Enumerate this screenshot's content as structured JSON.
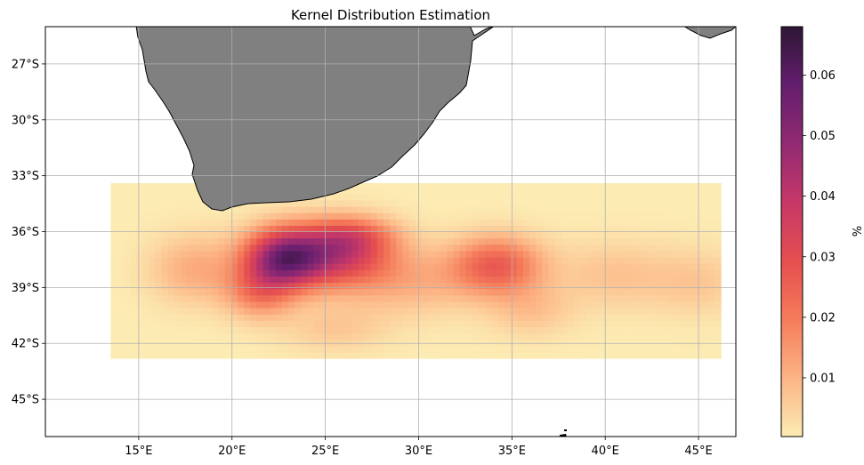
{
  "title": "Kernel Distribution Estimation",
  "colorbar": {
    "label": "%",
    "ticks": [
      0.01,
      0.02,
      0.03,
      0.04,
      0.05,
      0.06
    ],
    "tick_labels": [
      "0.01",
      "0.02",
      "0.03",
      "0.04",
      "0.05",
      "0.06"
    ],
    "range": [
      0.0003,
      0.068
    ],
    "colormap": "magma_r",
    "colors": [
      "#fcecb3",
      "#fcb485",
      "#f57c5a",
      "#e54f4f",
      "#c63868",
      "#922a72",
      "#641e6e",
      "#2e1534"
    ]
  },
  "map": {
    "land_color": "#808080",
    "coast_color": "#000000",
    "grid": true,
    "lon_range": [
      10,
      47
    ],
    "lat_range": [
      -47,
      -25
    ],
    "x_ticks": [
      15,
      20,
      25,
      30,
      35,
      40,
      45
    ],
    "x_tick_labels": [
      "15°E",
      "20°E",
      "25°E",
      "30°E",
      "35°E",
      "40°E",
      "45°E"
    ],
    "y_ticks": [
      -27,
      -30,
      -33,
      -36,
      -39,
      -42,
      -45
    ],
    "y_tick_labels": [
      "27°S",
      "30°S",
      "33°S",
      "36°S",
      "39°S",
      "42°S",
      "45°S"
    ]
  },
  "chart_data": {
    "type": "heatmap",
    "title": "Kernel Distribution Estimation",
    "value_label": "%",
    "domain": {
      "lon": [
        13.5,
        46.2
      ],
      "lat": [
        -42.8,
        -33.4
      ]
    },
    "vmin": 0.0003,
    "vmax": 0.068,
    "kernels": [
      {
        "lon": 22.8,
        "lat": -37.4,
        "amp": 0.05,
        "sx": 1.5,
        "sy": 1.1
      },
      {
        "lon": 25.8,
        "lat": -37.2,
        "amp": 0.032,
        "sx": 1.9,
        "sy": 1.2
      },
      {
        "lon": 21.5,
        "lat": -39.2,
        "amp": 0.018,
        "sx": 1.3,
        "sy": 1.0
      },
      {
        "lon": 26.5,
        "lat": -36.2,
        "amp": 0.014,
        "sx": 1.6,
        "sy": 0.7
      },
      {
        "lon": 18.0,
        "lat": -38.0,
        "amp": 0.011,
        "sx": 1.7,
        "sy": 1.3
      },
      {
        "lon": 29.5,
        "lat": -38.6,
        "amp": 0.01,
        "sx": 2.6,
        "sy": 1.3
      },
      {
        "lon": 34.2,
        "lat": -37.8,
        "amp": 0.025,
        "sx": 1.7,
        "sy": 1.1
      },
      {
        "lon": 36.0,
        "lat": -40.2,
        "amp": 0.007,
        "sx": 1.6,
        "sy": 1.0
      },
      {
        "lon": 40.5,
        "lat": -38.3,
        "amp": 0.007,
        "sx": 2.2,
        "sy": 1.3
      },
      {
        "lon": 45.0,
        "lat": -38.7,
        "amp": 0.006,
        "sx": 1.8,
        "sy": 1.3
      },
      {
        "lon": 25.5,
        "lat": -41.2,
        "amp": 0.006,
        "sx": 2.0,
        "sy": 0.9
      }
    ]
  }
}
